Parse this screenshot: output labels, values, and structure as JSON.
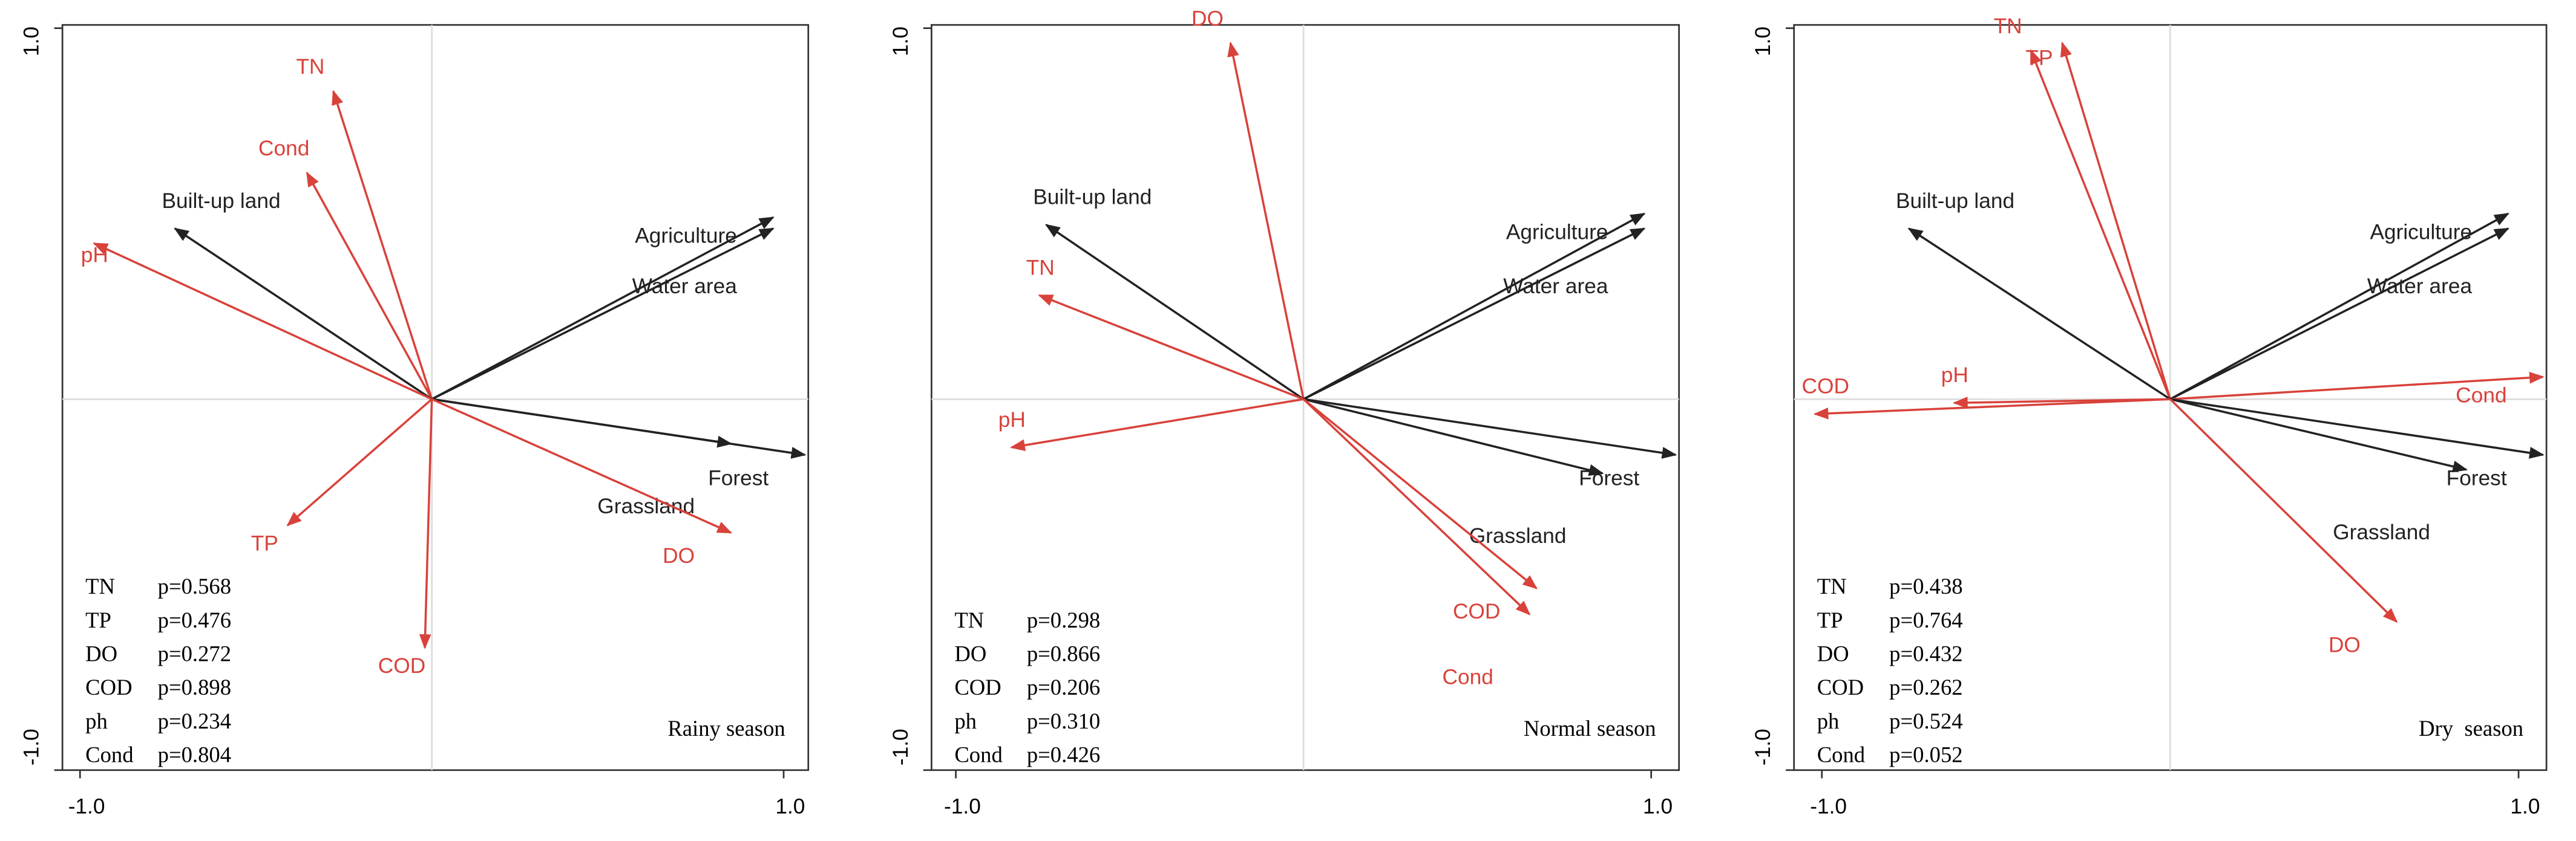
{
  "chart_data": [
    {
      "type": "biplot",
      "xlim": [
        -1.05,
        1.07
      ],
      "ylim": [
        -1.0,
        1.0
      ],
      "xticks": [
        {
          "value": -1,
          "label": "-1.0"
        },
        {
          "value": 1,
          "label": "1.0"
        }
      ],
      "yticks": [
        {
          "value": -1,
          "label": "-1.0"
        },
        {
          "value": 1,
          "label": "1.0"
        }
      ],
      "arrows": [
        {
          "label": "TN",
          "color": "#d8423a",
          "x": -0.28,
          "y": 0.83
        },
        {
          "label": "Cond",
          "color": "#d8423a",
          "x": -0.355,
          "y": 0.61
        },
        {
          "label": "Built-up land",
          "color": "#222222",
          "x": -0.73,
          "y": 0.46
        },
        {
          "label": "pH",
          "color": "#d8423a",
          "x": -0.96,
          "y": 0.42
        },
        {
          "label": "Agriculture",
          "color": "#222222",
          "x": 0.97,
          "y": 0.49
        },
        {
          "label": "Water area",
          "color": "#222222",
          "x": 0.97,
          "y": 0.46
        },
        {
          "label": "Forest",
          "color": "#222222",
          "x": 1.06,
          "y": -0.15
        },
        {
          "label": "Grassland",
          "color": "#222222",
          "x": 0.85,
          "y": -0.12
        },
        {
          "label": "DO",
          "color": "#d8423a",
          "x": 0.85,
          "y": -0.36
        },
        {
          "label": "TP",
          "color": "#d8423a",
          "x": -0.41,
          "y": -0.34
        },
        {
          "label": "COD",
          "color": "#d8423a",
          "x": -0.02,
          "y": -0.67
        }
      ],
      "p_values": [
        [
          "TN",
          "p=0.568"
        ],
        [
          "TP",
          "p=0.476"
        ],
        [
          "DO",
          "p=0.272"
        ],
        [
          "COD",
          "p=0.898"
        ],
        [
          "ph",
          "p=0.234"
        ],
        [
          "Cond",
          "p=0.804"
        ]
      ],
      "season": "Rainy season"
    },
    {
      "type": "biplot",
      "xlim": [
        -1.07,
        1.08
      ],
      "ylim": [
        -1.0,
        1.0
      ],
      "xticks": [
        {
          "value": -1,
          "label": "-1.0"
        },
        {
          "value": 1,
          "label": "1.0"
        }
      ],
      "yticks": [
        {
          "value": -1,
          "label": "-1.0"
        },
        {
          "value": 1,
          "label": "1.0"
        }
      ],
      "arrows": [
        {
          "label": "DO",
          "color": "#d8423a",
          "x": -0.21,
          "y": 0.96
        },
        {
          "label": "Built-up land",
          "color": "#222222",
          "x": -0.74,
          "y": 0.47
        },
        {
          "label": "TN",
          "color": "#d8423a",
          "x": -0.76,
          "y": 0.28
        },
        {
          "label": "pH",
          "color": "#d8423a",
          "x": -0.84,
          "y": -0.13
        },
        {
          "label": "Agriculture",
          "color": "#222222",
          "x": 0.98,
          "y": 0.5
        },
        {
          "label": "Water area",
          "color": "#222222",
          "x": 0.98,
          "y": 0.46
        },
        {
          "label": "Forest",
          "color": "#222222",
          "x": 1.07,
          "y": -0.15
        },
        {
          "label": "Grassland",
          "color": "#222222",
          "x": 0.86,
          "y": -0.2
        },
        {
          "label": "COD",
          "color": "#d8423a",
          "x": 0.67,
          "y": -0.51
        },
        {
          "label": "Cond",
          "color": "#d8423a",
          "x": 0.65,
          "y": -0.58
        }
      ],
      "p_values": [
        [
          "TN",
          "p=0.298"
        ],
        [
          "DO",
          "p=0.866"
        ],
        [
          "COD",
          "p=0.206"
        ],
        [
          "ph",
          "p=0.310"
        ],
        [
          "Cond",
          "p=0.426"
        ]
      ],
      "season": "Normal season"
    },
    {
      "type": "biplot",
      "xlim": [
        -1.08,
        1.08
      ],
      "ylim": [
        -1.0,
        1.0
      ],
      "xticks": [
        {
          "value": -1,
          "label": "-1.0"
        },
        {
          "value": 1,
          "label": "1.0"
        }
      ],
      "yticks": [
        {
          "value": -1,
          "label": "-1.0"
        },
        {
          "value": 1,
          "label": "1.0"
        }
      ],
      "arrows": [
        {
          "label": "TN",
          "color": "#d8423a",
          "x": -0.4,
          "y": 0.94
        },
        {
          "label": "TP",
          "color": "#d8423a",
          "x": -0.31,
          "y": 0.96
        },
        {
          "label": "Built-up land",
          "color": "#222222",
          "x": -0.75,
          "y": 0.46
        },
        {
          "label": "pH",
          "color": "#d8423a",
          "x": -0.62,
          "y": -0.01
        },
        {
          "label": "COD",
          "color": "#d8423a",
          "x": -1.02,
          "y": -0.04
        },
        {
          "label": "Agriculture",
          "color": "#222222",
          "x": 0.97,
          "y": 0.5
        },
        {
          "label": "Water area",
          "color": "#222222",
          "x": 0.97,
          "y": 0.46
        },
        {
          "label": "Cond",
          "color": "#d8423a",
          "x": 1.07,
          "y": 0.06
        },
        {
          "label": "Forest",
          "color": "#222222",
          "x": 1.07,
          "y": -0.15
        },
        {
          "label": "Grassland",
          "color": "#222222",
          "x": 0.85,
          "y": -0.19
        },
        {
          "label": "DO",
          "color": "#d8423a",
          "x": 0.65,
          "y": -0.6
        }
      ],
      "p_values": [
        [
          "TN",
          "p=0.438"
        ],
        [
          "TP",
          "p=0.764"
        ],
        [
          "DO",
          "p=0.432"
        ],
        [
          "COD",
          "p=0.262"
        ],
        [
          "ph",
          "p=0.524"
        ],
        [
          "Cond",
          "p=0.052"
        ]
      ],
      "season": "Dry  season"
    }
  ]
}
